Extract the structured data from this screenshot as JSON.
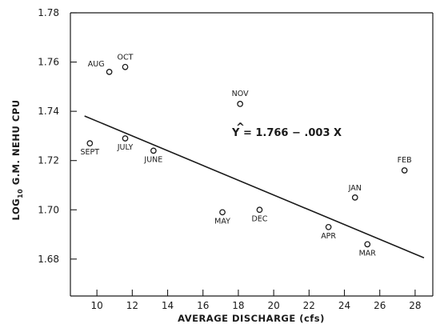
{
  "chart_data": {
    "type": "scatter",
    "title": "",
    "xlabel": "AVERAGE DISCHARGE (cfs)",
    "ylabel_prefix": "LOG",
    "ylabel_sub": "10",
    "ylabel_rest": " G.M. NEHU CPU",
    "xlim": [
      8.5,
      29
    ],
    "ylim": [
      1.665,
      1.78
    ],
    "x_ticks": [
      10,
      12,
      14,
      16,
      18,
      20,
      22,
      24,
      26,
      28
    ],
    "x_tick_labels": [
      "10",
      "12",
      "14",
      "16",
      "18",
      "20",
      "22",
      "24",
      "26",
      "28"
    ],
    "y_ticks": [
      1.68,
      1.7,
      1.72,
      1.74,
      1.76,
      1.78
    ],
    "y_tick_labels": [
      "1.68",
      "1.70",
      "1.72",
      "1.74",
      "1.76",
      "1.78"
    ],
    "points": [
      {
        "label": "AUG",
        "x": 10.7,
        "y": 1.756
      },
      {
        "label": "OCT",
        "x": 11.6,
        "y": 1.758
      },
      {
        "label": "SEPT",
        "x": 9.6,
        "y": 1.727
      },
      {
        "label": "JULY",
        "x": 11.6,
        "y": 1.729
      },
      {
        "label": "JUNE",
        "x": 13.2,
        "y": 1.724
      },
      {
        "label": "NOV",
        "x": 18.1,
        "y": 1.743
      },
      {
        "label": "MAY",
        "x": 17.1,
        "y": 1.699
      },
      {
        "label": "DEC",
        "x": 19.2,
        "y": 1.7
      },
      {
        "label": "APR",
        "x": 23.1,
        "y": 1.693
      },
      {
        "label": "JAN",
        "x": 24.6,
        "y": 1.705
      },
      {
        "label": "MAR",
        "x": 25.3,
        "y": 1.686
      },
      {
        "label": "FEB",
        "x": 27.4,
        "y": 1.716
      }
    ],
    "regression": {
      "equation": "Y = 1.766 − .003 X",
      "hat": "^",
      "intercept": 1.766,
      "slope": -0.003,
      "x_range": [
        9.3,
        28.5
      ]
    },
    "grid": false,
    "legend": "none"
  }
}
